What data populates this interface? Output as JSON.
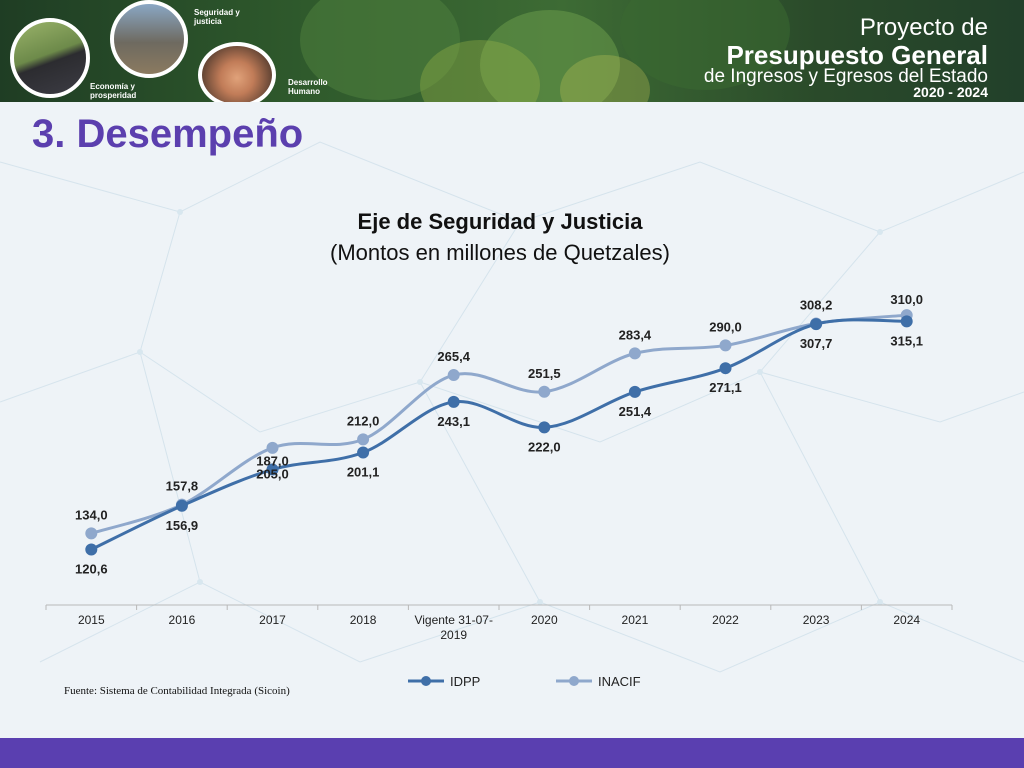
{
  "banner": {
    "title_line1": "Proyecto de",
    "title_line2": "Presupuesto General",
    "title_line3": "de Ingresos y Egresos del Estado",
    "title_line4": "2020 - 2024",
    "captions": {
      "seguridad": "Seguridad y justicia",
      "economia": "Economía y prosperidad",
      "desarrollo": "Desarrollo Humano"
    }
  },
  "page": {
    "title": "3. Desempeño",
    "source": "Fuente: Sistema de Contabilidad Integrada (Sicoin)"
  },
  "colors": {
    "idpp": "#3f6fa8",
    "inacif": "#8fa8cc",
    "title": "#5b3fae",
    "footer": "#5a3fb0"
  },
  "chart_data": {
    "type": "line",
    "title": "Eje de Seguridad y Justicia",
    "subtitle": "(Montos en millones de Quetzales)",
    "categories": [
      "2015",
      "2016",
      "2017",
      "2018",
      "Vigente 31-07-2019",
      "2020",
      "2021",
      "2022",
      "2023",
      "2024"
    ],
    "series": [
      {
        "name": "IDPP",
        "values": [
          120.6,
          156.9,
          187.0,
          201.1,
          243.1,
          222.0,
          251.4,
          271.1,
          307.7,
          310.0
        ],
        "labels": [
          "120,6",
          "156,9",
          "187,0",
          "201,1",
          "243,1",
          "222,0",
          "251,4",
          "271,1",
          "307,7",
          "310,0"
        ]
      },
      {
        "name": "INACIF",
        "values": [
          134.0,
          157.8,
          205.0,
          212.0,
          265.4,
          251.5,
          283.4,
          290.0,
          308.2,
          315.1
        ],
        "labels": [
          "134,0",
          "157,8",
          "205,0",
          "212,0",
          "265,4",
          "251,5",
          "283,4",
          "290,0",
          "308,2",
          "315,1"
        ]
      }
    ],
    "legend_position": "bottom",
    "grid": false,
    "smooth": true
  }
}
